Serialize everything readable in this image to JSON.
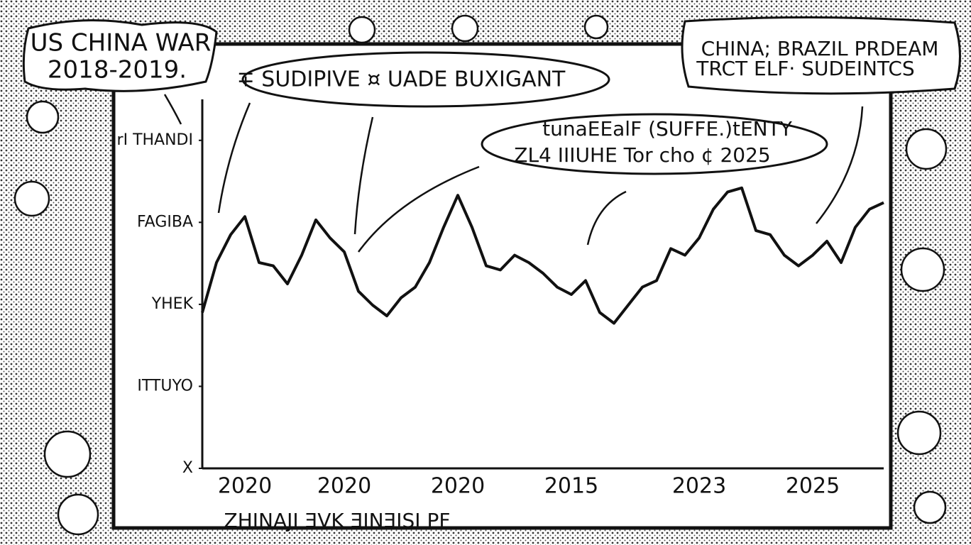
{
  "chart_data": {
    "type": "line",
    "title_lines": [
      "US CHINA WAR",
      "2018-2019."
    ],
    "annotations": [
      {
        "lines": [
          "∓ SUDIPIVE ¤ UADE BUXIGANT"
        ]
      },
      {
        "lines": [
          "CHINA; BRAZIL PRDEAM",
          "TRCT ELF· SUDEINTCS"
        ]
      },
      {
        "lines": [
          "tunaEEalF (SUFFE.)tENTY",
          "ZL4 IIIUHE Tor cho ¢ 2025"
        ]
      }
    ],
    "xlabel": "ZHINAJI ƎVK ƎINƎISI PF",
    "categories": [
      null,
      null,
      null,
      "2020",
      null,
      null,
      null,
      null,
      null,
      null,
      "2020",
      null,
      null,
      null,
      null,
      null,
      null,
      null,
      "2020",
      null,
      null,
      null,
      null,
      null,
      null,
      null,
      "2015",
      null,
      null,
      null,
      null,
      null,
      null,
      null,
      null,
      "2023",
      null,
      null,
      null,
      null,
      null,
      null,
      null,
      "2025",
      null,
      null,
      null,
      null,
      null
    ],
    "values": [
      1.9,
      2.51,
      2.85,
      3.07,
      2.51,
      2.47,
      2.25,
      2.6,
      3.03,
      2.81,
      2.64,
      2.16,
      1.99,
      1.86,
      2.08,
      2.21,
      2.51,
      2.94,
      3.33,
      2.94,
      2.47,
      2.42,
      2.6,
      2.51,
      2.38,
      2.21,
      2.12,
      2.29,
      1.9,
      1.77,
      1.99,
      2.21,
      2.29,
      2.68,
      2.6,
      2.81,
      3.16,
      3.37,
      3.42,
      2.9,
      2.85,
      2.6,
      2.47,
      2.6,
      2.77,
      2.51,
      2.94,
      3.16,
      3.24
    ],
    "color": "#111111",
    "ylim": [
      0,
      4.5
    ],
    "yticks": [
      {
        "value": 0,
        "label": "X"
      },
      {
        "value": 1,
        "label": "ITTUYO"
      },
      {
        "value": 2,
        "label": "YHEK"
      },
      {
        "value": 3,
        "label": "FAGIBA"
      },
      {
        "value": 4,
        "label": "rI THANDI"
      }
    ]
  }
}
